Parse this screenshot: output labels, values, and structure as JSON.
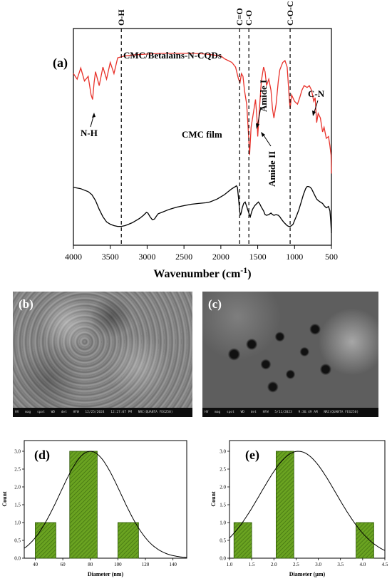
{
  "chart_data": [
    {
      "panel": "(a)",
      "type": "line",
      "xlabel": "Wavenumber (cm",
      "xlabel_sup": "-1",
      "xlabel_close": ")",
      "xlim": [
        4000,
        500
      ],
      "x_ticks": [
        "4000",
        "3500",
        "3000",
        "2500",
        "2000",
        "1500",
        "1000",
        "500"
      ],
      "series": [
        {
          "name": "CMC/Betalains-N-CQDs",
          "color": "#e8322b",
          "points": [
            [
              4000,
              -0.12
            ],
            [
              3950,
              -0.18
            ],
            [
              3900,
              -0.06
            ],
            [
              3850,
              -0.2
            ],
            [
              3800,
              -0.15
            ],
            [
              3760,
              -0.35
            ],
            [
              3740,
              -0.4
            ],
            [
              3720,
              -0.22
            ],
            [
              3700,
              -0.1
            ],
            [
              3650,
              -0.25
            ],
            [
              3600,
              -0.05
            ],
            [
              3550,
              -0.18
            ],
            [
              3500,
              0.0
            ],
            [
              3450,
              -0.12
            ],
            [
              3400,
              0.05
            ],
            [
              3350,
              0.06
            ],
            [
              3300,
              0.07
            ],
            [
              3200,
              0.08
            ],
            [
              3000,
              0.09
            ],
            [
              2800,
              0.1
            ],
            [
              2600,
              0.1
            ],
            [
              2400,
              0.1
            ],
            [
              2200,
              0.09
            ],
            [
              2100,
              0.08
            ],
            [
              2000,
              0.07
            ],
            [
              1950,
              0.04
            ],
            [
              1900,
              0.02
            ],
            [
              1850,
              0.0
            ],
            [
              1800,
              -0.05
            ],
            [
              1760,
              -0.18
            ],
            [
              1740,
              -0.22
            ],
            [
              1720,
              -0.12
            ],
            [
              1700,
              -0.15
            ],
            [
              1680,
              -0.3
            ],
            [
              1650,
              -0.45
            ],
            [
              1630,
              -0.7
            ],
            [
              1610,
              -1.0
            ],
            [
              1590,
              -0.7
            ],
            [
              1560,
              -0.55
            ],
            [
              1530,
              -0.4
            ],
            [
              1510,
              -0.6
            ],
            [
              1500,
              -0.8
            ],
            [
              1480,
              -0.55
            ],
            [
              1450,
              -0.2
            ],
            [
              1420,
              -0.05
            ],
            [
              1400,
              -0.1
            ],
            [
              1380,
              -0.25
            ],
            [
              1350,
              -0.18
            ],
            [
              1320,
              -0.3
            ],
            [
              1300,
              -0.5
            ],
            [
              1280,
              -0.6
            ],
            [
              1250,
              -0.45
            ],
            [
              1220,
              -0.2
            ],
            [
              1200,
              -0.08
            ],
            [
              1160,
              0.0
            ],
            [
              1130,
              0.02
            ],
            [
              1100,
              -0.05
            ],
            [
              1070,
              -0.4
            ],
            [
              1060,
              -0.5
            ],
            [
              1040,
              -0.35
            ],
            [
              1000,
              -0.42
            ],
            [
              960,
              -0.45
            ],
            [
              930,
              -0.38
            ],
            [
              900,
              -0.3
            ],
            [
              870,
              -0.25
            ],
            [
              830,
              -0.27
            ],
            [
              800,
              -0.25
            ],
            [
              770,
              -0.3
            ],
            [
              740,
              -0.42
            ],
            [
              720,
              -0.38
            ],
            [
              700,
              -0.65
            ],
            [
              680,
              -0.55
            ],
            [
              650,
              -0.6
            ],
            [
              620,
              -0.75
            ],
            [
              600,
              -0.7
            ],
            [
              570,
              -0.82
            ],
            [
              540,
              -0.8
            ],
            [
              520,
              -0.9
            ],
            [
              505,
              -1.0
            ],
            [
              500,
              -1.2
            ]
          ]
        },
        {
          "name": "CMC film",
          "color": "#000000",
          "points": [
            [
              4000,
              -0.6
            ],
            [
              3950,
              -0.61
            ],
            [
              3900,
              -0.62
            ],
            [
              3850,
              -0.64
            ],
            [
              3800,
              -0.66
            ],
            [
              3750,
              -0.7
            ],
            [
              3700,
              -0.78
            ],
            [
              3650,
              -0.9
            ],
            [
              3600,
              -1.0
            ],
            [
              3550,
              -1.07
            ],
            [
              3500,
              -1.1
            ],
            [
              3450,
              -1.12
            ],
            [
              3400,
              -1.13
            ],
            [
              3350,
              -1.13
            ],
            [
              3300,
              -1.12
            ],
            [
              3250,
              -1.1
            ],
            [
              3200,
              -1.08
            ],
            [
              3150,
              -1.05
            ],
            [
              3100,
              -1.02
            ],
            [
              3050,
              -0.98
            ],
            [
              3010,
              -0.94
            ],
            [
              2990,
              -0.95
            ],
            [
              2960,
              -1.0
            ],
            [
              2930,
              -1.04
            ],
            [
              2900,
              -1.03
            ],
            [
              2880,
              -1.0
            ],
            [
              2850,
              -0.96
            ],
            [
              2800,
              -0.94
            ],
            [
              2700,
              -0.9
            ],
            [
              2600,
              -0.87
            ],
            [
              2500,
              -0.85
            ],
            [
              2400,
              -0.83
            ],
            [
              2300,
              -0.82
            ],
            [
              2200,
              -0.81
            ],
            [
              2150,
              -0.8
            ],
            [
              2100,
              -0.78
            ],
            [
              2050,
              -0.76
            ],
            [
              2000,
              -0.73
            ],
            [
              1950,
              -0.7
            ],
            [
              1900,
              -0.66
            ],
            [
              1850,
              -0.62
            ],
            [
              1800,
              -0.59
            ],
            [
              1790,
              -0.58
            ],
            [
              1775,
              -0.6
            ],
            [
              1760,
              -0.75
            ],
            [
              1745,
              -0.92
            ],
            [
              1735,
              -0.98
            ],
            [
              1725,
              -0.95
            ],
            [
              1710,
              -0.88
            ],
            [
              1690,
              -0.82
            ],
            [
              1670,
              -0.8
            ],
            [
              1650,
              -0.86
            ],
            [
              1630,
              -0.92
            ],
            [
              1610,
              -0.98
            ],
            [
              1600,
              -1.0
            ],
            [
              1590,
              -0.96
            ],
            [
              1570,
              -0.9
            ],
            [
              1540,
              -0.85
            ],
            [
              1510,
              -0.82
            ],
            [
              1490,
              -0.8
            ],
            [
              1470,
              -0.83
            ],
            [
              1450,
              -0.87
            ],
            [
              1420,
              -0.92
            ],
            [
              1400,
              -0.97
            ],
            [
              1380,
              -0.98
            ],
            [
              1350,
              -0.97
            ],
            [
              1320,
              -0.95
            ],
            [
              1300,
              -0.97
            ],
            [
              1280,
              -0.98
            ],
            [
              1250,
              -0.97
            ],
            [
              1220,
              -0.98
            ],
            [
              1200,
              -1.0
            ],
            [
              1180,
              -1.03
            ],
            [
              1150,
              -1.07
            ],
            [
              1120,
              -1.1
            ],
            [
              1100,
              -1.12
            ],
            [
              1080,
              -1.13
            ],
            [
              1060,
              -1.13
            ],
            [
              1040,
              -1.12
            ],
            [
              1020,
              -1.1
            ],
            [
              1000,
              -1.05
            ],
            [
              970,
              -0.98
            ],
            [
              940,
              -0.9
            ],
            [
              910,
              -0.8
            ],
            [
              880,
              -0.7
            ],
            [
              850,
              -0.62
            ],
            [
              830,
              -0.59
            ],
            [
              810,
              -0.59
            ],
            [
              790,
              -0.6
            ],
            [
              770,
              -0.62
            ],
            [
              750,
              -0.66
            ],
            [
              720,
              -0.72
            ],
            [
              700,
              -0.76
            ],
            [
              680,
              -0.78
            ],
            [
              650,
              -0.8
            ],
            [
              620,
              -0.82
            ],
            [
              600,
              -0.85
            ],
            [
              570,
              -0.88
            ],
            [
              540,
              -0.86
            ],
            [
              520,
              -0.92
            ],
            [
              510,
              -1.05
            ],
            [
              500,
              -1.22
            ]
          ]
        }
      ],
      "vlines": [
        {
          "x": 3350,
          "label": "O-H"
        },
        {
          "x": 1745,
          "label": "C=O"
        },
        {
          "x": 1620,
          "label": "C-O"
        },
        {
          "x": 1060,
          "label": "C-O-C"
        }
      ],
      "annotations": [
        "N-H",
        "Amide I",
        "Amide II",
        "C-N"
      ]
    },
    {
      "panel": "(d)",
      "type": "bar",
      "xlabel": "Diameter (nm)",
      "ylabel": "Count",
      "xlim": [
        32,
        150
      ],
      "ylim": [
        0,
        3.3
      ],
      "x_ticks": [
        "40",
        "60",
        "80",
        "100",
        "120",
        "140"
      ],
      "y_ticks": [
        "0.0",
        "0.5",
        "1.0",
        "1.5",
        "2.0",
        "2.5",
        "3.0"
      ],
      "bins": [
        [
          40,
          55
        ],
        [
          65,
          85
        ],
        [
          100,
          115
        ]
      ],
      "counts": [
        1,
        3,
        1
      ],
      "fit": {
        "mean": 80,
        "sd": 22,
        "peak": 3.0
      }
    },
    {
      "panel": "(e)",
      "type": "bar",
      "xlabel": "Diameter (µm)",
      "ylabel": "Count",
      "xlim": [
        1.0,
        4.5
      ],
      "ylim": [
        0,
        3.3
      ],
      "x_ticks": [
        "1.0",
        "1.5",
        "2.0",
        "2.5",
        "3.0",
        "3.5",
        "4.0",
        "4.5"
      ],
      "y_ticks": [
        "0.0",
        "0.5",
        "1.0",
        "1.5",
        "2.0",
        "2.5",
        "3.0"
      ],
      "bins": [
        [
          1.1,
          1.5
        ],
        [
          2.05,
          2.45
        ],
        [
          3.85,
          4.25
        ]
      ],
      "counts": [
        1,
        3,
        1
      ],
      "fit": {
        "mean": 2.55,
        "sd": 0.85,
        "peak": 3.0
      }
    }
  ],
  "sem_b": {
    "label": "(b)",
    "info": [
      "HV",
      "mag",
      "spot",
      "WD",
      "det",
      "HFW",
      "12/25/2024",
      "12:27:07 PM",
      "NRC(QUANTA FEG250)"
    ]
  },
  "sem_c": {
    "label": "(c)",
    "info": [
      "HV",
      "mag",
      "spot",
      "WD",
      "det",
      "HFW",
      "5/11/2023",
      "9:36:49 AM",
      "NRC(QUANTA FEG250)"
    ]
  }
}
